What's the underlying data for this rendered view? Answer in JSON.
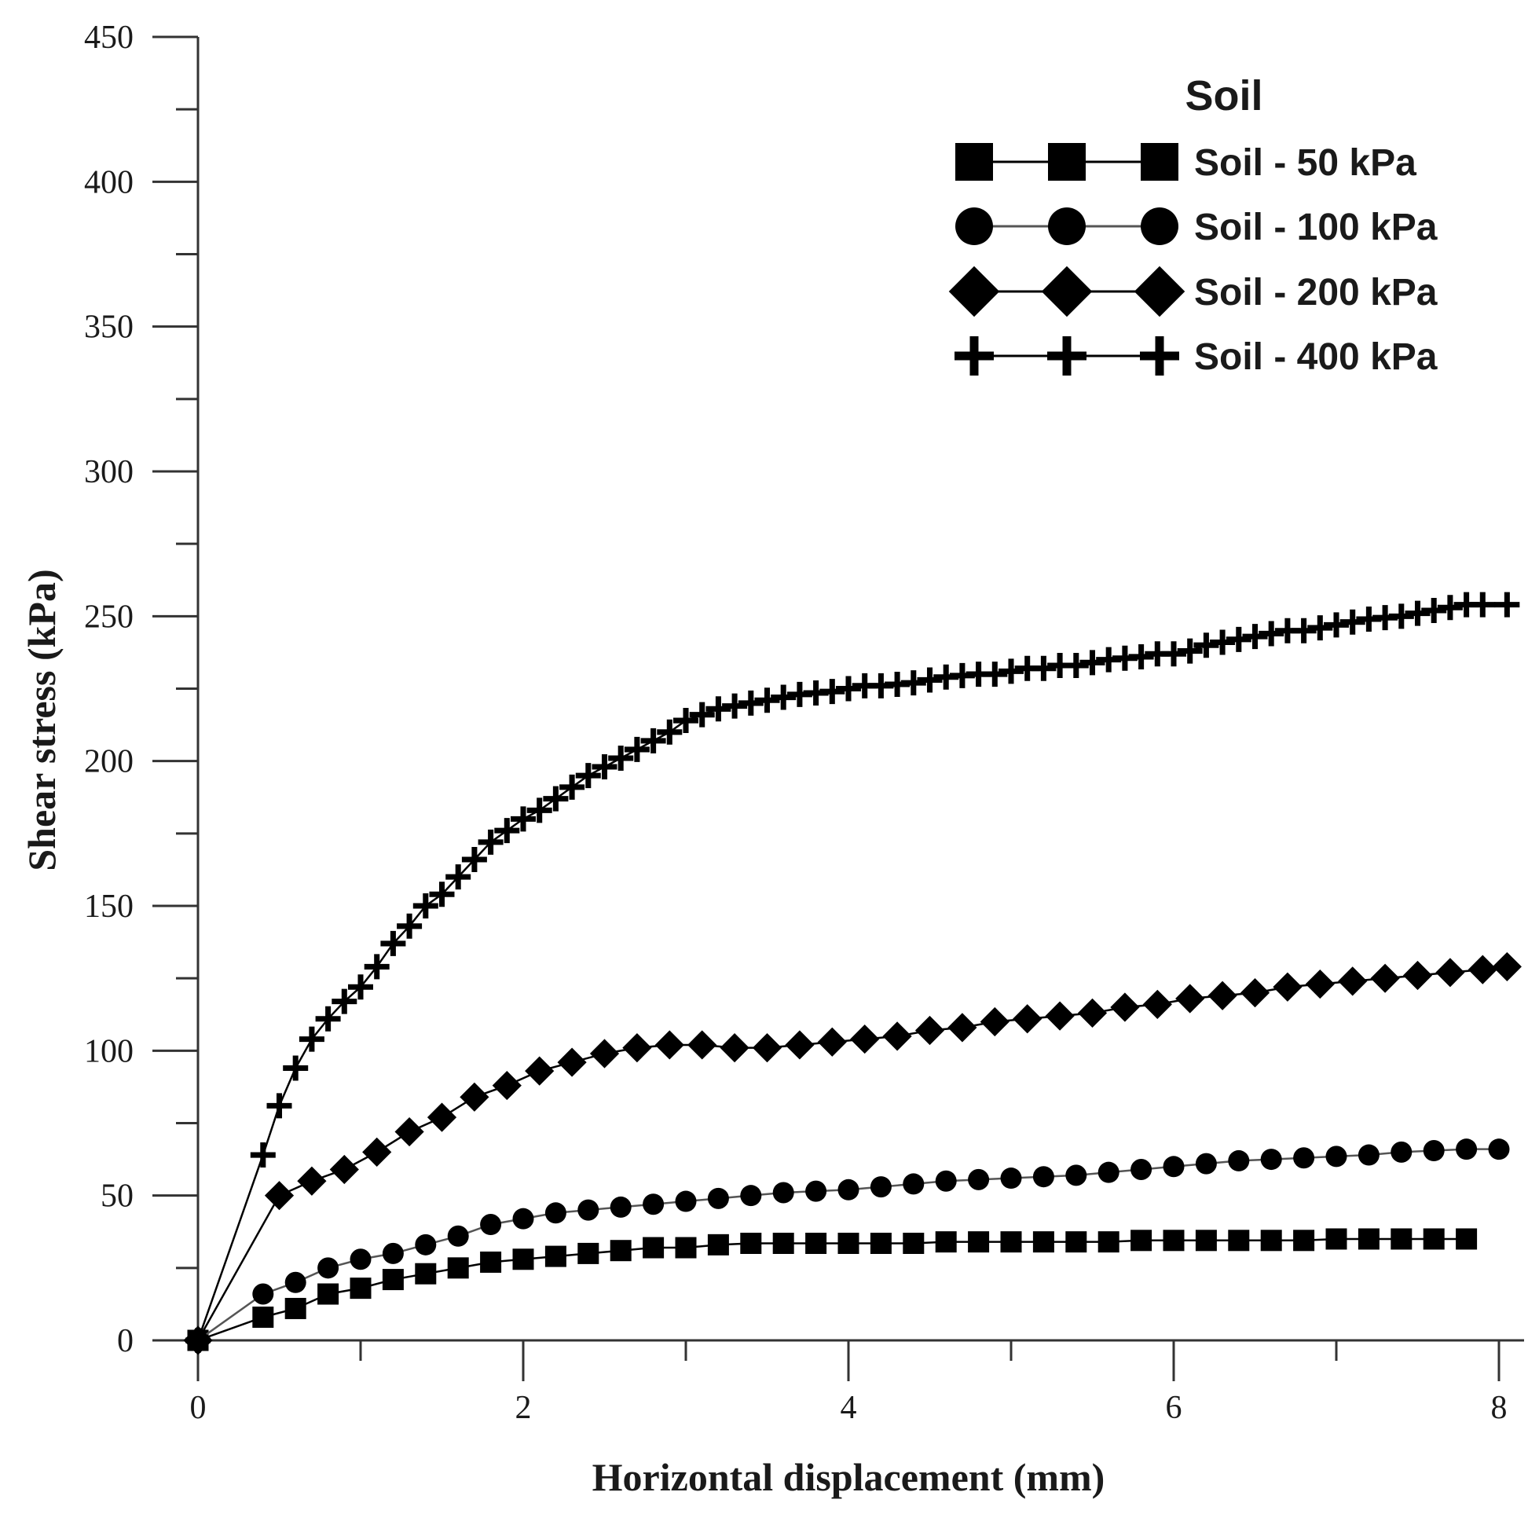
{
  "chart_data": {
    "type": "line",
    "title": "",
    "xlabel": "Horizontal displacement (mm)",
    "ylabel": "Shear stress (kPa)",
    "xlim": [
      0,
      8
    ],
    "ylim": [
      0,
      450
    ],
    "x_ticks": [
      "0",
      "2",
      "4",
      "6",
      "8"
    ],
    "y_ticks": [
      "0",
      "50",
      "100",
      "150",
      "200",
      "250",
      "300",
      "350",
      "400",
      "450"
    ],
    "grid": false,
    "legend": {
      "title": "Soil",
      "placement": "top-right",
      "entries": [
        "Soil - 50 kPa",
        "Soil - 100 kPa",
        "Soil - 200 kPa",
        "Soil - 400 kPa"
      ]
    },
    "colors": {
      "ink": "#000000",
      "axis": "#333333"
    },
    "series": [
      {
        "name": "Soil - 50 kPa",
        "marker": "square",
        "x": [
          0,
          0.4,
          0.6,
          0.8,
          1.0,
          1.2,
          1.4,
          1.6,
          1.8,
          2.0,
          2.2,
          2.4,
          2.6,
          2.8,
          3.0,
          3.2,
          3.4,
          3.6,
          3.8,
          4.0,
          4.2,
          4.4,
          4.6,
          4.8,
          5.0,
          5.2,
          5.4,
          5.6,
          5.8,
          6.0,
          6.2,
          6.4,
          6.6,
          6.8,
          7.0,
          7.2,
          7.4,
          7.6,
          7.8
        ],
        "y": [
          0,
          8,
          11,
          16,
          18,
          21,
          23,
          25,
          27,
          28,
          29,
          30,
          31,
          32,
          32,
          33,
          33.5,
          33.5,
          33.5,
          33.5,
          33.5,
          33.5,
          34,
          34,
          34,
          34,
          34,
          34,
          34.5,
          34.5,
          34.5,
          34.5,
          34.5,
          34.5,
          35,
          35,
          35,
          35,
          35
        ]
      },
      {
        "name": "Soil - 100 kPa",
        "marker": "circle",
        "x": [
          0,
          0.4,
          0.6,
          0.8,
          1.0,
          1.2,
          1.4,
          1.6,
          1.8,
          2.0,
          2.2,
          2.4,
          2.6,
          2.8,
          3.0,
          3.2,
          3.4,
          3.6,
          3.8,
          4.0,
          4.2,
          4.4,
          4.6,
          4.8,
          5.0,
          5.2,
          5.4,
          5.6,
          5.8,
          6.0,
          6.2,
          6.4,
          6.6,
          6.8,
          7.0,
          7.2,
          7.4,
          7.6,
          7.8,
          8.0
        ],
        "y": [
          0,
          16,
          20,
          25,
          28,
          30,
          33,
          36,
          40,
          42,
          44,
          45,
          46,
          47,
          48,
          49,
          50,
          51,
          51.5,
          52,
          53,
          54,
          55,
          55.5,
          56,
          56.5,
          57,
          58,
          59,
          60,
          61,
          62,
          62.5,
          63,
          63.5,
          64,
          65,
          65.5,
          66,
          66
        ]
      },
      {
        "name": "Soil - 200 kPa",
        "marker": "diamond",
        "x": [
          0,
          0.5,
          0.7,
          0.9,
          1.1,
          1.3,
          1.5,
          1.7,
          1.9,
          2.1,
          2.3,
          2.5,
          2.7,
          2.9,
          3.1,
          3.3,
          3.5,
          3.7,
          3.9,
          4.1,
          4.3,
          4.5,
          4.7,
          4.9,
          5.1,
          5.3,
          5.5,
          5.7,
          5.9,
          6.1,
          6.3,
          6.5,
          6.7,
          6.9,
          7.1,
          7.3,
          7.5,
          7.7,
          7.9,
          8.05
        ],
        "y": [
          0,
          50,
          55,
          59,
          65,
          72,
          77,
          84,
          88,
          93,
          96,
          99,
          101,
          102,
          102,
          101,
          101,
          102,
          103,
          104,
          105,
          107,
          108,
          110,
          111,
          112,
          113,
          115,
          116,
          118,
          119,
          120,
          122,
          123,
          124,
          125,
          126,
          127,
          128,
          129
        ]
      },
      {
        "name": "Soil - 400 kPa",
        "marker": "plus",
        "x": [
          0,
          0.4,
          0.5,
          0.6,
          0.7,
          0.8,
          0.9,
          1.0,
          1.1,
          1.2,
          1.3,
          1.4,
          1.5,
          1.6,
          1.7,
          1.8,
          1.9,
          2.0,
          2.1,
          2.2,
          2.3,
          2.4,
          2.5,
          2.6,
          2.7,
          2.8,
          2.9,
          3.0,
          3.1,
          3.2,
          3.3,
          3.4,
          3.5,
          3.6,
          3.7,
          3.8,
          3.9,
          4.0,
          4.1,
          4.2,
          4.3,
          4.4,
          4.5,
          4.6,
          4.7,
          4.8,
          4.9,
          5.0,
          5.1,
          5.2,
          5.3,
          5.4,
          5.5,
          5.6,
          5.7,
          5.8,
          5.9,
          6.0,
          6.1,
          6.2,
          6.3,
          6.4,
          6.5,
          6.6,
          6.7,
          6.8,
          6.9,
          7.0,
          7.1,
          7.2,
          7.3,
          7.4,
          7.5,
          7.6,
          7.7,
          7.8,
          7.9,
          8.05
        ],
        "y": [
          0,
          64,
          81,
          94,
          104,
          111,
          117,
          122,
          129,
          137,
          143,
          150,
          154,
          160,
          166,
          172,
          176,
          180,
          183,
          187,
          191,
          195,
          198,
          201,
          204,
          207,
          210,
          214,
          216,
          218,
          219,
          220,
          221,
          222,
          223,
          223.5,
          224,
          225,
          226,
          226,
          226.5,
          227,
          228,
          229,
          229.5,
          230,
          230,
          231,
          232,
          232,
          233,
          233,
          234,
          235,
          235.5,
          236,
          237,
          237,
          238,
          240,
          241,
          242,
          243,
          244,
          245,
          245,
          246,
          247,
          248,
          249,
          249.5,
          250,
          251,
          252,
          253,
          254,
          254,
          254
        ]
      }
    ]
  }
}
